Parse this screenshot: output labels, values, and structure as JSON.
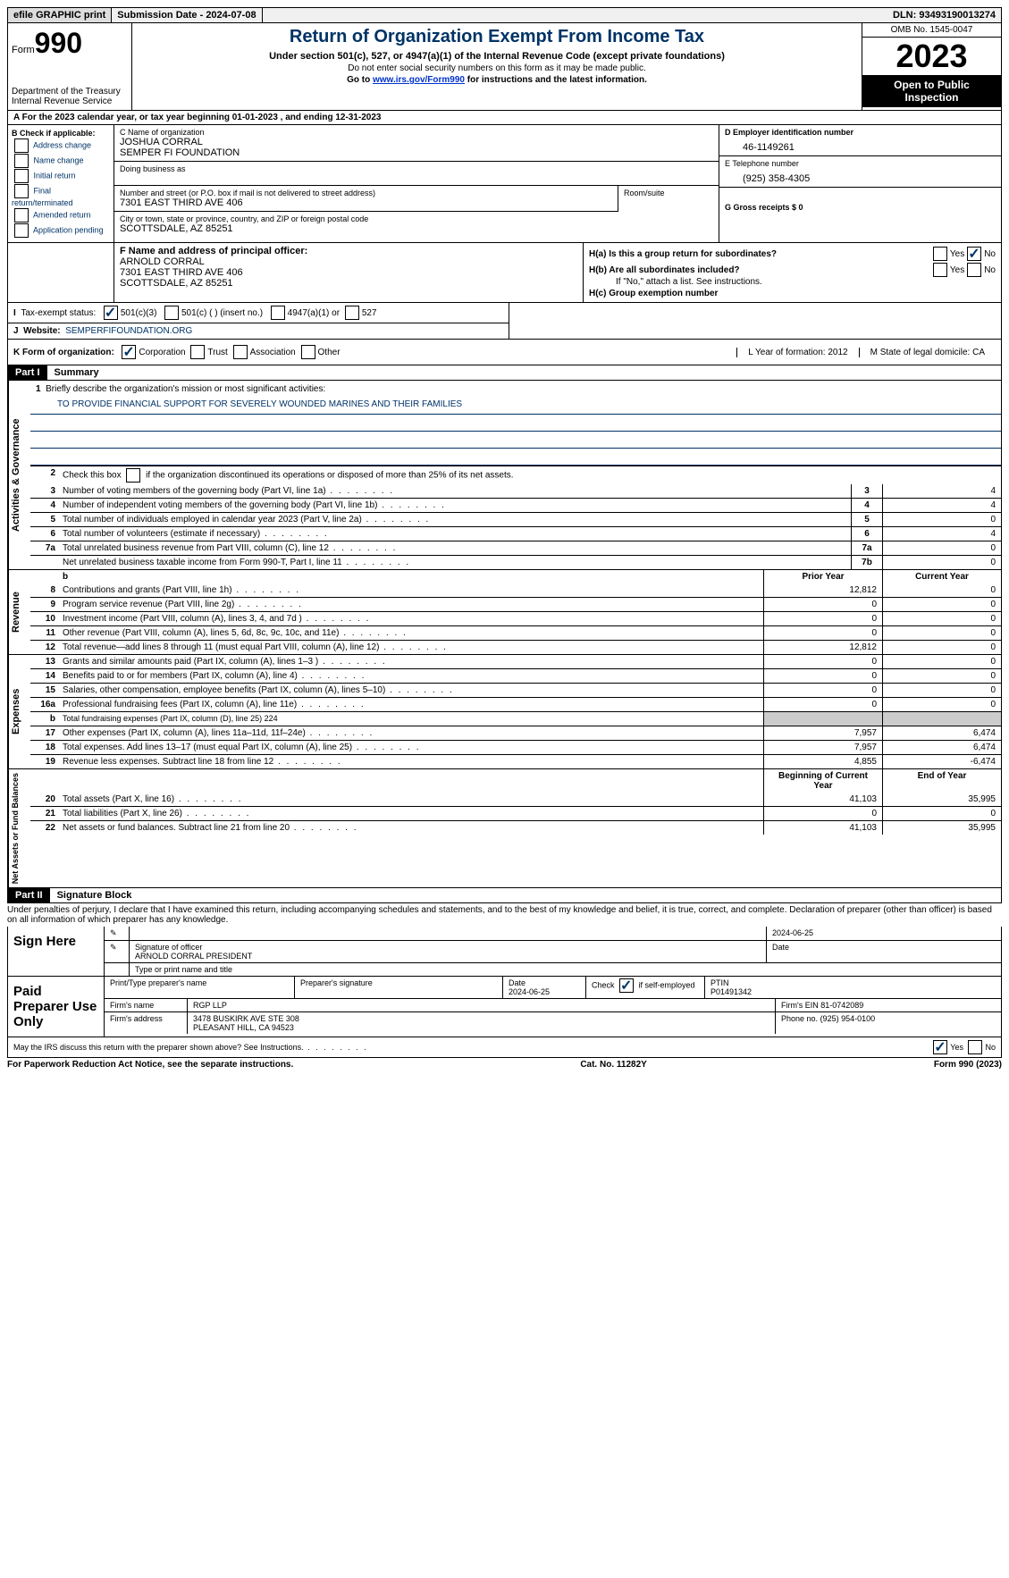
{
  "topbar": {
    "efile": "efile GRAPHIC print",
    "submission": "Submission Date - 2024-07-08",
    "dln": "DLN: 93493190013274"
  },
  "header": {
    "form_label": "Form",
    "form_num": "990",
    "dept": "Department of the Treasury Internal Revenue Service",
    "title": "Return of Organization Exempt From Income Tax",
    "sub1": "Under section 501(c), 527, or 4947(a)(1) of the Internal Revenue Code (except private foundations)",
    "sub2": "Do not enter social security numbers on this form as it may be made public.",
    "sub3_pre": "Go to ",
    "sub3_link": "www.irs.gov/Form990",
    "sub3_post": " for instructions and the latest information.",
    "omb": "OMB No. 1545-0047",
    "year": "2023",
    "open": "Open to Public Inspection"
  },
  "line_a": "For the 2023 calendar year, or tax year beginning 01-01-2023    , and ending 12-31-2023",
  "box_b": {
    "header": "B Check if applicable:",
    "opts": [
      "Address change",
      "Name change",
      "Initial return",
      "Final return/terminated",
      "Amended return",
      "Application pending"
    ]
  },
  "box_c": {
    "name_label": "C Name of organization",
    "name1": "JOSHUA CORRAL",
    "name2": "SEMPER FI FOUNDATION",
    "dba_label": "Doing business as",
    "addr_label": "Number and street (or P.O. box if mail is not delivered to street address)",
    "room_label": "Room/suite",
    "addr": "7301 EAST THIRD AVE 406",
    "city_label": "City or town, state or province, country, and ZIP or foreign postal code",
    "city": "SCOTTSDALE, AZ  85251"
  },
  "box_d": {
    "label": "D Employer identification number",
    "val": "46-1149261"
  },
  "box_e": {
    "label": "E Telephone number",
    "val": "(925) 358-4305"
  },
  "box_g": {
    "label": "G Gross receipts $ 0"
  },
  "box_f": {
    "label": "F  Name and address of principal officer:",
    "name": "ARNOLD CORRAL",
    "addr1": "7301 EAST THIRD AVE 406",
    "addr2": "SCOTTSDALE, AZ  85251"
  },
  "box_h": {
    "a": "H(a)  Is this a group return for subordinates?",
    "b": "H(b)  Are all subordinates included?",
    "b_note": "If \"No,\" attach a list. See instructions.",
    "c": "H(c)  Group exemption number"
  },
  "tax_exempt": {
    "label": "Tax-exempt status:",
    "opt1": "501(c)(3)",
    "opt2": "501(c) (  ) (insert no.)",
    "opt3": "4947(a)(1) or",
    "opt4": "527"
  },
  "website": {
    "label": "Website:",
    "val": "SEMPERFIFOUNDATION.ORG"
  },
  "form_org": {
    "label": "K Form of organization:",
    "opts": [
      "Corporation",
      "Trust",
      "Association",
      "Other"
    ]
  },
  "box_l": "L Year of formation: 2012",
  "box_m": "M State of legal domicile: CA",
  "part1": {
    "num": "Part I",
    "title": "Summary"
  },
  "summary_sections": {
    "governance": "Activities & Governance",
    "revenue": "Revenue",
    "expenses": "Expenses",
    "netassets": "Net Assets or Fund Balances"
  },
  "mission": {
    "num": "1",
    "label": "Briefly describe the organization's mission or most significant activities:",
    "text": "TO PROVIDE FINANCIAL SUPPORT FOR SEVERELY WOUNDED MARINES AND THEIR FAMILIES"
  },
  "line2": "Check this box      if the organization discontinued its operations or disposed of more than 25% of its net assets.",
  "gov_lines": [
    {
      "n": "3",
      "t": "Number of voting members of the governing body (Part VI, line 1a)",
      "box": "3",
      "v": "4"
    },
    {
      "n": "4",
      "t": "Number of independent voting members of the governing body (Part VI, line 1b)",
      "box": "4",
      "v": "4"
    },
    {
      "n": "5",
      "t": "Total number of individuals employed in calendar year 2023 (Part V, line 2a)",
      "box": "5",
      "v": "0"
    },
    {
      "n": "6",
      "t": "Total number of volunteers (estimate if necessary)",
      "box": "6",
      "v": "4"
    },
    {
      "n": "7a",
      "t": "Total unrelated business revenue from Part VIII, column (C), line 12",
      "box": "7a",
      "v": "0"
    },
    {
      "n": "",
      "t": "Net unrelated business taxable income from Form 990-T, Part I, line 11",
      "box": "7b",
      "v": "0"
    }
  ],
  "col_headers": {
    "prior": "Prior Year",
    "current": "Current Year",
    "begin": "Beginning of Current Year",
    "end": "End of Year"
  },
  "rev_lines": [
    {
      "n": "8",
      "t": "Contributions and grants (Part VIII, line 1h)",
      "p": "12,812",
      "c": "0"
    },
    {
      "n": "9",
      "t": "Program service revenue (Part VIII, line 2g)",
      "p": "0",
      "c": "0"
    },
    {
      "n": "10",
      "t": "Investment income (Part VIII, column (A), lines 3, 4, and 7d )",
      "p": "0",
      "c": "0"
    },
    {
      "n": "11",
      "t": "Other revenue (Part VIII, column (A), lines 5, 6d, 8c, 9c, 10c, and 11e)",
      "p": "0",
      "c": "0"
    },
    {
      "n": "12",
      "t": "Total revenue—add lines 8 through 11 (must equal Part VIII, column (A), line 12)",
      "p": "12,812",
      "c": "0"
    }
  ],
  "exp_lines": [
    {
      "n": "13",
      "t": "Grants and similar amounts paid (Part IX, column (A), lines 1–3 )",
      "p": "0",
      "c": "0"
    },
    {
      "n": "14",
      "t": "Benefits paid to or for members (Part IX, column (A), line 4)",
      "p": "0",
      "c": "0"
    },
    {
      "n": "15",
      "t": "Salaries, other compensation, employee benefits (Part IX, column (A), lines 5–10)",
      "p": "0",
      "c": "0"
    },
    {
      "n": "16a",
      "t": "Professional fundraising fees (Part IX, column (A), line 11e)",
      "p": "0",
      "c": "0"
    },
    {
      "n": "b",
      "t": "Total fundraising expenses (Part IX, column (D), line 25) 224",
      "shaded": true
    },
    {
      "n": "17",
      "t": "Other expenses (Part IX, column (A), lines 11a–11d, 11f–24e)",
      "p": "7,957",
      "c": "6,474"
    },
    {
      "n": "18",
      "t": "Total expenses. Add lines 13–17 (must equal Part IX, column (A), line 25)",
      "p": "7,957",
      "c": "6,474"
    },
    {
      "n": "19",
      "t": "Revenue less expenses. Subtract line 18 from line 12",
      "p": "4,855",
      "c": "-6,474"
    }
  ],
  "net_lines": [
    {
      "n": "20",
      "t": "Total assets (Part X, line 16)",
      "p": "41,103",
      "c": "35,995"
    },
    {
      "n": "21",
      "t": "Total liabilities (Part X, line 26)",
      "p": "0",
      "c": "0"
    },
    {
      "n": "22",
      "t": "Net assets or fund balances. Subtract line 21 from line 20",
      "p": "41,103",
      "c": "35,995"
    }
  ],
  "part2": {
    "num": "Part II",
    "title": "Signature Block"
  },
  "perjury": "Under penalties of perjury, I declare that I have examined this return, including accompanying schedules and statements, and to the best of my knowledge and belief, it is true, correct, and complete. Declaration of preparer (other than officer) is based on all information of which preparer has any knowledge.",
  "sign_here": {
    "label": "Sign Here",
    "date": "2024-06-25",
    "sig_label": "Signature of officer",
    "officer": "ARNOLD CORRAL PRESIDENT",
    "type_label": "Type or print name and title",
    "date_label": "Date"
  },
  "paid_prep": {
    "label": "Paid Preparer Use Only",
    "name_label": "Print/Type preparer's name",
    "sig_label": "Preparer's signature",
    "date_label": "Date",
    "date": "2024-06-25",
    "self_emp": "Check       if self-employed",
    "ptin_label": "PTIN",
    "ptin": "P01491342",
    "firm_name_label": "Firm's name",
    "firm_name": "RGP LLP",
    "firm_ein_label": "Firm's EIN",
    "firm_ein": "81-0742089",
    "firm_addr_label": "Firm's address",
    "firm_addr1": "3478 BUSKIRK AVE STE 308",
    "firm_addr2": "PLEASANT HILL, CA  94523",
    "phone_label": "Phone no.",
    "phone": "(925) 954-0100"
  },
  "may_irs": "May the IRS discuss this return with the preparer shown above? See Instructions.",
  "footer": {
    "left": "For Paperwork Reduction Act Notice, see the separate instructions.",
    "mid": "Cat. No. 11282Y",
    "right_pre": "Form ",
    "right_form": "990",
    "right_post": " (2023)"
  },
  "yesno": {
    "yes": "Yes",
    "no": "No"
  }
}
